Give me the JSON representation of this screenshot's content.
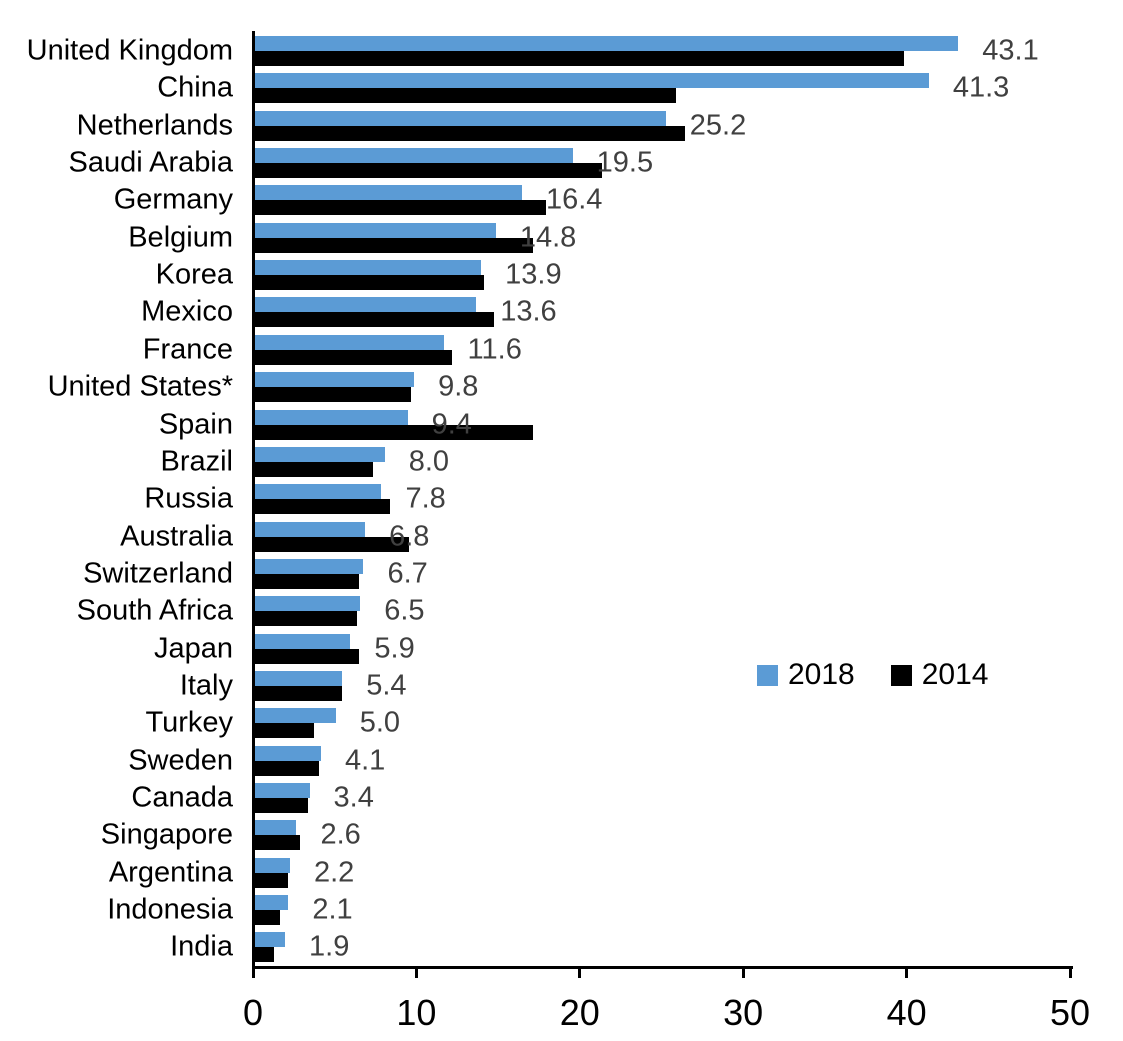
{
  "chart_data": {
    "type": "bar",
    "orientation": "horizontal",
    "title": "",
    "categories": [
      "United Kingdom",
      "China",
      "Netherlands",
      "Saudi Arabia",
      "Germany",
      "Belgium",
      "Korea",
      "Mexico",
      "France",
      "United States*",
      "Spain",
      "Brazil",
      "Russia",
      "Australia",
      "Switzerland",
      "South Africa",
      "Japan",
      "Italy",
      "Turkey",
      "Sweden",
      "Canada",
      "Singapore",
      "Argentina",
      "Indonesia",
      "India"
    ],
    "series": [
      {
        "name": "2018",
        "color": "#5B9BD5",
        "values": [
          43.1,
          41.3,
          25.2,
          19.5,
          16.4,
          14.8,
          13.9,
          13.6,
          11.6,
          9.8,
          9.4,
          8.0,
          7.8,
          6.8,
          6.7,
          6.5,
          5.9,
          5.4,
          5.0,
          4.1,
          3.4,
          2.6,
          2.2,
          2.1,
          1.9
        ]
      },
      {
        "name": "2014",
        "color": "#000000",
        "values": [
          39.8,
          25.8,
          26.4,
          21.3,
          17.9,
          17.1,
          14.1,
          14.7,
          12.1,
          9.6,
          17.1,
          7.3,
          8.3,
          9.5,
          6.4,
          6.3,
          6.4,
          5.4,
          3.7,
          4.0,
          3.3,
          2.8,
          2.1,
          1.6,
          1.2
        ]
      }
    ],
    "data_labels": {
      "series": "2018",
      "color": "#404040",
      "values": [
        "43.1",
        "41.3",
        "25.2",
        "19.5",
        "16.4",
        "14.8",
        "13.9",
        "13.6",
        "11.6",
        "9.8",
        "9.4",
        "8.0",
        "7.8",
        "6.8",
        "6.7",
        "6.5",
        "5.9",
        "5.4",
        "5.0",
        "4.1",
        "3.4",
        "2.6",
        "2.2",
        "2.1",
        "1.9"
      ]
    },
    "x_axis": {
      "min": 0,
      "max": 50,
      "ticks": [
        0,
        10,
        20,
        30,
        40,
        50
      ],
      "tick_labels": [
        "0",
        "10",
        "20",
        "30",
        "40",
        "50"
      ]
    },
    "grid": false,
    "legend": {
      "position": "middle-right",
      "entries": [
        {
          "label": "2018",
          "color": "#5B9BD5"
        },
        {
          "label": "2014",
          "color": "#000000"
        }
      ]
    }
  }
}
